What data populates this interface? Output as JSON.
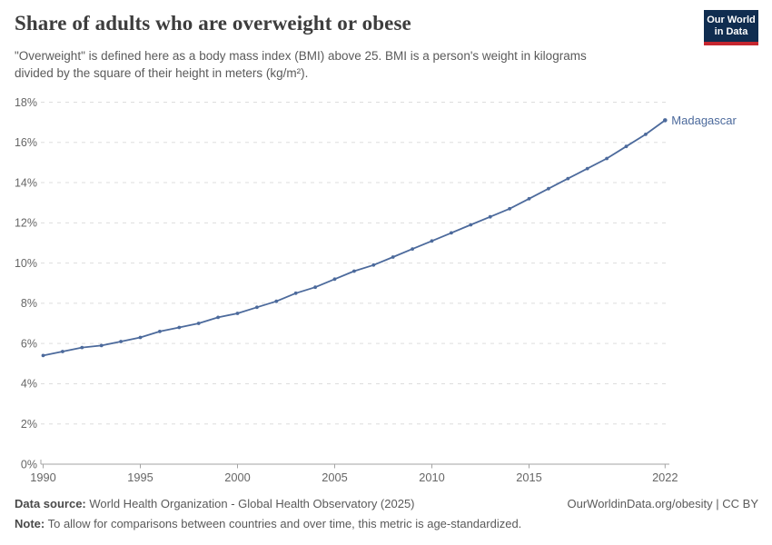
{
  "header": {
    "title": "Share of adults who are overweight or obese",
    "subtitle": "\"Overweight\" is defined here as a body mass index (BMI) above 25. BMI is a person's weight in kilograms divided by the square of their height in meters (kg/m²).",
    "logo": {
      "line1": "Our World",
      "line2": "in Data"
    }
  },
  "footer": {
    "data_source_label": "Data source:",
    "data_source_text": " World Health Organization - Global Health Observatory (2025)",
    "note_label": "Note:",
    "note_text": " To allow for comparisons between countries and over time, this metric is age-standardized.",
    "credit": "OurWorldinData.org/obesity | CC BY"
  },
  "colors": {
    "line": "#4C6A9C",
    "entity_label": "#4C6A9C",
    "grid": "#dddddd",
    "axis": "#a3a3a3",
    "tick_label": "#666666",
    "title": "#3d3d3d",
    "body_text": "#5a5a5a",
    "logo_navy": "#102d50",
    "logo_red": "#c5262f"
  },
  "chart_data": {
    "type": "line",
    "title": "Share of adults who are overweight or obese",
    "xlabel": "",
    "ylabel": "",
    "ylim": [
      0,
      18
    ],
    "ytick_step": 2,
    "ytick_suffix": "%",
    "xticks": [
      1990,
      1995,
      2000,
      2005,
      2010,
      2015,
      2022
    ],
    "grid": "horizontal-dashed",
    "legend_position": "end-of-line-label",
    "x": [
      1990,
      1991,
      1992,
      1993,
      1994,
      1995,
      1996,
      1997,
      1998,
      1999,
      2000,
      2001,
      2002,
      2003,
      2004,
      2005,
      2006,
      2007,
      2008,
      2009,
      2010,
      2011,
      2012,
      2013,
      2014,
      2015,
      2016,
      2017,
      2018,
      2019,
      2020,
      2021,
      2022
    ],
    "series": [
      {
        "name": "Madagascar",
        "values": [
          5.4,
          5.6,
          5.8,
          5.9,
          6.1,
          6.3,
          6.6,
          6.8,
          7.0,
          7.3,
          7.5,
          7.8,
          8.1,
          8.5,
          8.8,
          9.2,
          9.6,
          9.9,
          10.3,
          10.7,
          11.1,
          11.5,
          11.9,
          12.3,
          12.7,
          13.2,
          13.7,
          14.2,
          14.7,
          15.2,
          15.8,
          16.4,
          17.1
        ]
      }
    ]
  }
}
